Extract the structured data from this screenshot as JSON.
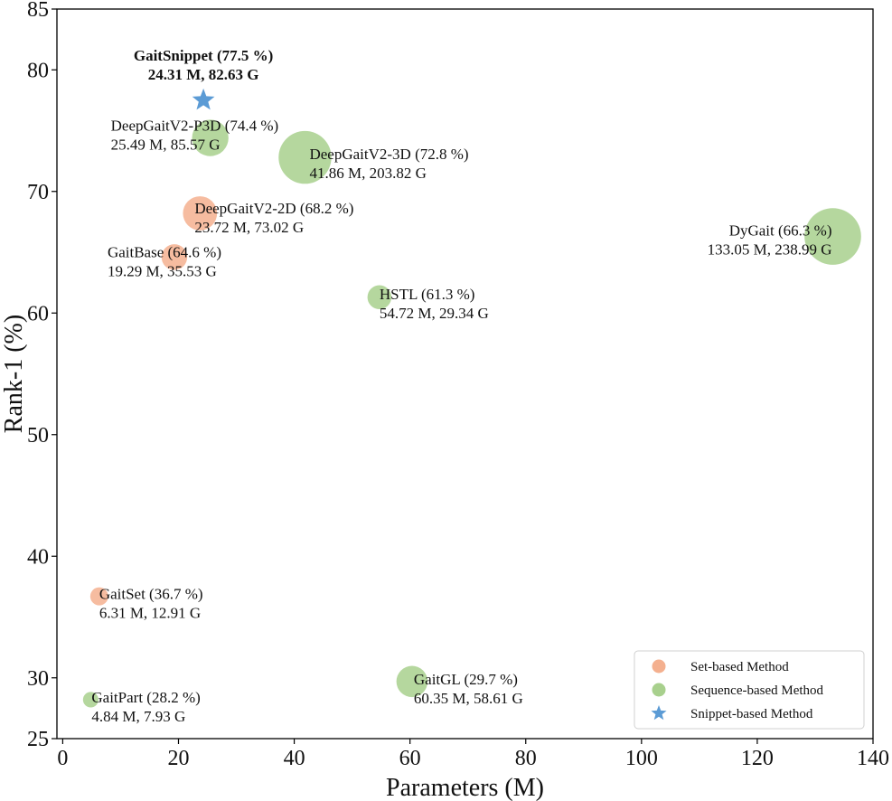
{
  "chart_data": {
    "type": "scatter",
    "xlabel": "Parameters (M)",
    "ylabel": "Rank-1 (%)",
    "xlim": [
      -1,
      140
    ],
    "ylim": [
      25,
      85
    ],
    "xticks": [
      0,
      20,
      40,
      60,
      80,
      100,
      120,
      140
    ],
    "yticks": [
      25,
      30,
      40,
      50,
      60,
      70,
      80,
      85
    ],
    "colors": {
      "set": "#f4b08f",
      "sequence": "#a8d08d",
      "snippet": "#5b9bd5"
    },
    "legend": {
      "position": "bottom-right",
      "entries": [
        {
          "label": "Set-based Method",
          "category": "set"
        },
        {
          "label": "Sequence-based Method",
          "category": "sequence"
        },
        {
          "label": "Snippet-based Method",
          "category": "snippet"
        }
      ]
    },
    "points": [
      {
        "name": "GaitSnippet",
        "params": 24.31,
        "flops": 82.63,
        "rank1": 77.5,
        "category": "snippet",
        "line1": "GaitSnippet (77.5 %)",
        "line2": "24.31 M, 82.63 G",
        "bold": true
      },
      {
        "name": "DeepGaitV2-P3D",
        "params": 25.49,
        "flops": 85.57,
        "rank1": 74.4,
        "category": "sequence",
        "line1": "DeepGaitV2-P3D (74.4 %)",
        "line2": "25.49 M, 85.57 G"
      },
      {
        "name": "DeepGaitV2-3D",
        "params": 41.86,
        "flops": 203.82,
        "rank1": 72.8,
        "category": "sequence",
        "line1": "DeepGaitV2-3D (72.8 %)",
        "line2": "41.86 M, 203.82 G"
      },
      {
        "name": "DeepGaitV2-2D",
        "params": 23.72,
        "flops": 73.02,
        "rank1": 68.2,
        "category": "set",
        "line1": "DeepGaitV2-2D (68.2 %)",
        "line2": "23.72 M, 73.02 G"
      },
      {
        "name": "GaitBase",
        "params": 19.29,
        "flops": 35.53,
        "rank1": 64.6,
        "category": "set",
        "line1": "GaitBase (64.6 %)",
        "line2": "19.29 M, 35.53 G"
      },
      {
        "name": "DyGait",
        "params": 133.05,
        "flops": 238.99,
        "rank1": 66.3,
        "category": "sequence",
        "line1": "DyGait (66.3 %)",
        "line2": "133.05 M, 238.99 G"
      },
      {
        "name": "HSTL",
        "params": 54.72,
        "flops": 29.34,
        "rank1": 61.3,
        "category": "sequence",
        "line1": "HSTL (61.3 %)",
        "line2": "54.72 M, 29.34 G"
      },
      {
        "name": "GaitSet",
        "params": 6.31,
        "flops": 12.91,
        "rank1": 36.7,
        "category": "set",
        "line1": "GaitSet (36.7 %)",
        "line2": "6.31 M, 12.91 G"
      },
      {
        "name": "GaitGL",
        "params": 60.35,
        "flops": 58.61,
        "rank1": 29.7,
        "category": "sequence",
        "line1": "GaitGL (29.7 %)",
        "line2": "60.35 M, 58.61 G"
      },
      {
        "name": "GaitPart",
        "params": 4.84,
        "flops": 7.93,
        "rank1": 28.2,
        "category": "sequence",
        "line1": "GaitPart (28.2 %)",
        "line2": "4.84 M, 7.93 G"
      }
    ]
  }
}
